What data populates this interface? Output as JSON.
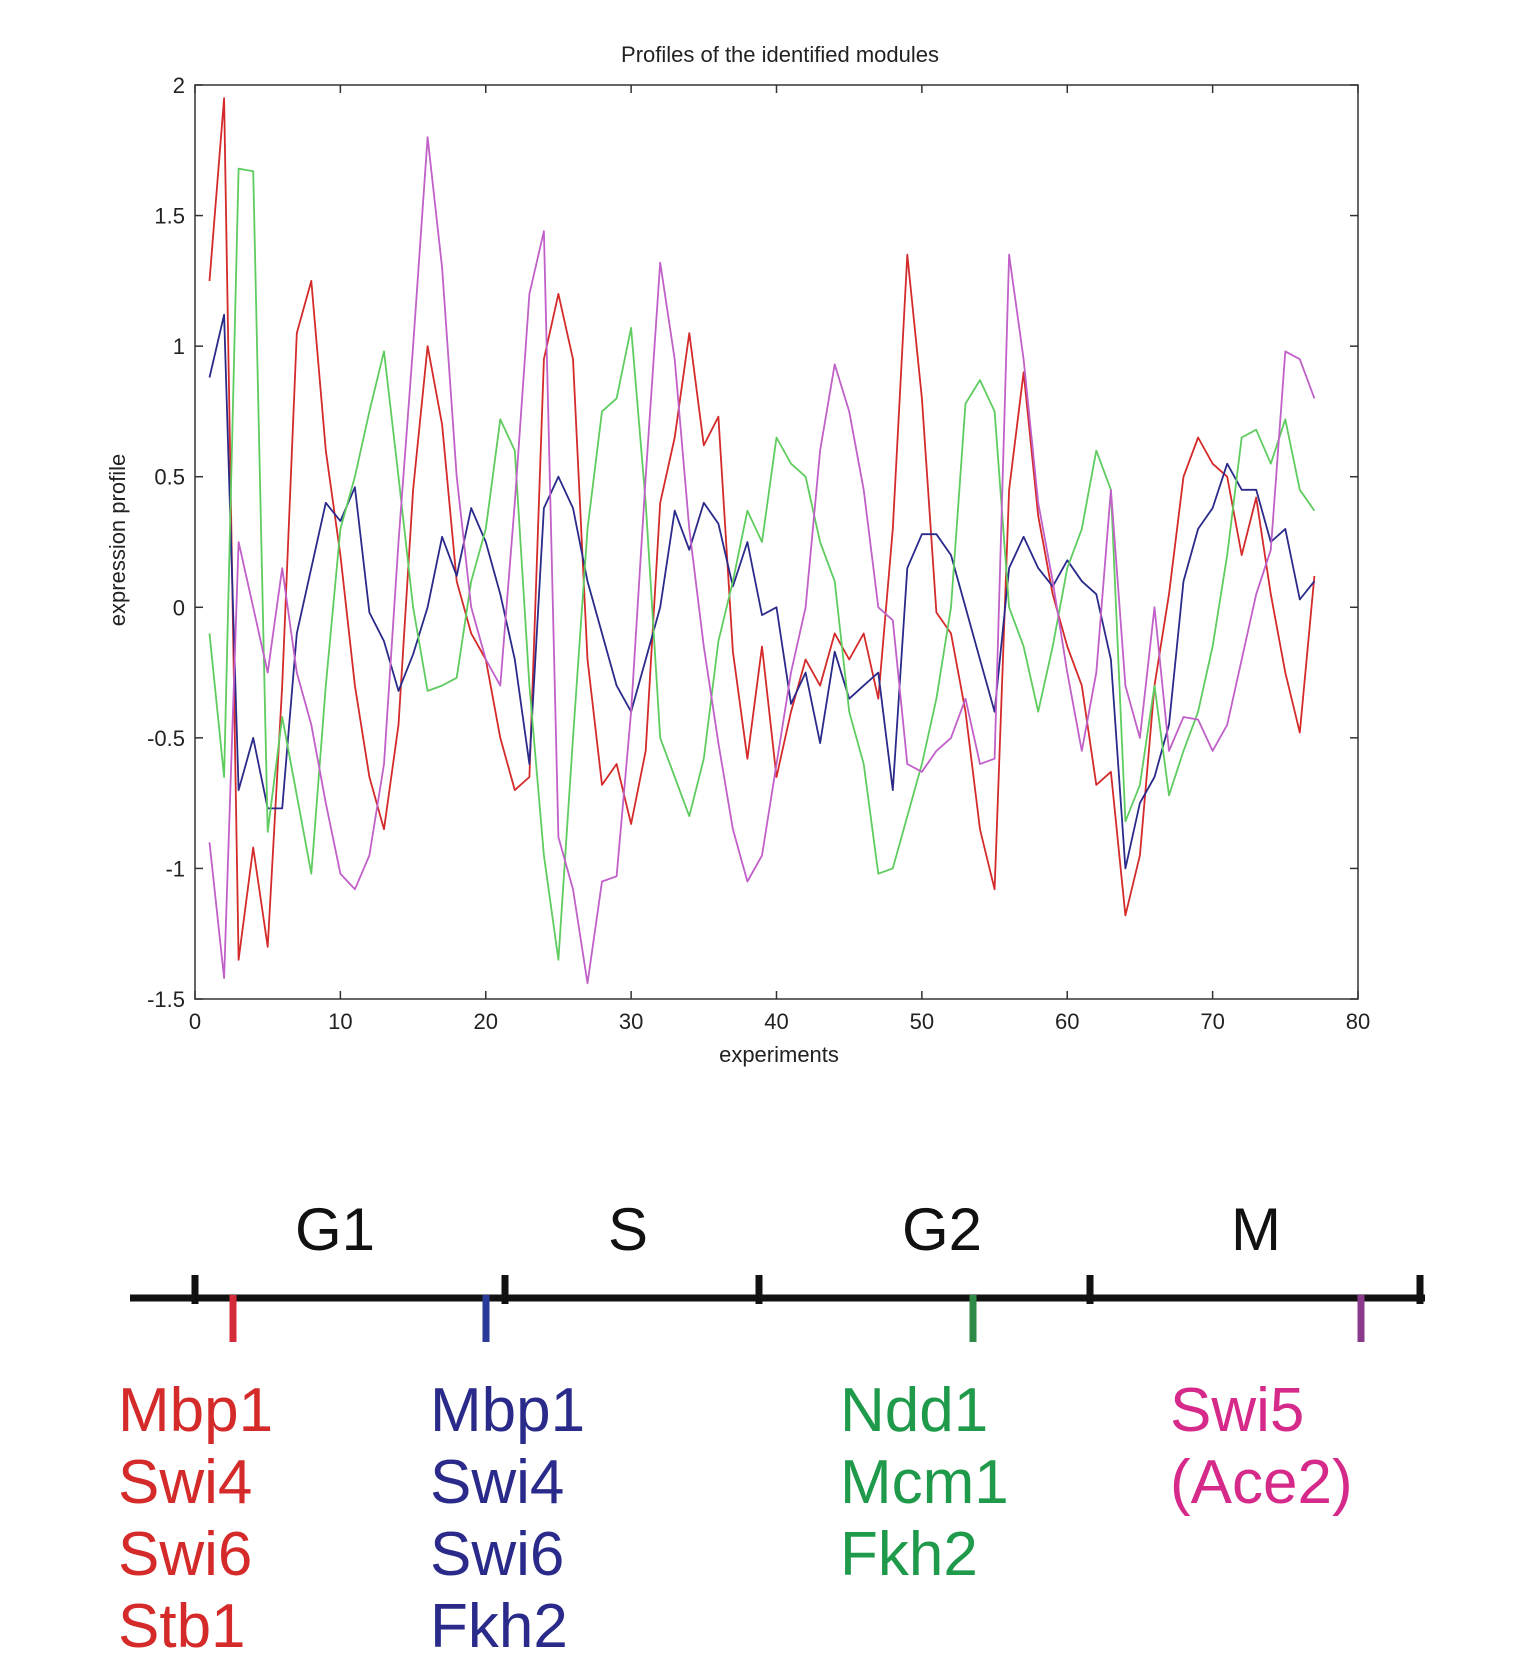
{
  "chart_data": {
    "type": "line",
    "title": "Profiles of the identified modules",
    "xlabel": "experiments",
    "ylabel": "expression profile",
    "xlim": [
      0,
      80
    ],
    "ylim": [
      -1.5,
      2
    ],
    "xticks": [
      0,
      10,
      20,
      30,
      40,
      50,
      60,
      70,
      80
    ],
    "yticks": [
      -1.5,
      -1,
      -0.5,
      0,
      0.5,
      1,
      1.5,
      2
    ],
    "x": [
      1,
      2,
      3,
      4,
      5,
      6,
      7,
      8,
      9,
      10,
      11,
      12,
      13,
      14,
      15,
      16,
      17,
      18,
      19,
      20,
      21,
      22,
      23,
      24,
      25,
      26,
      27,
      28,
      29,
      30,
      31,
      32,
      33,
      34,
      35,
      36,
      37,
      38,
      39,
      40,
      41,
      42,
      43,
      44,
      45,
      46,
      47,
      48,
      49,
      50,
      51,
      52,
      53,
      54,
      55,
      56,
      57,
      58,
      59,
      60,
      61,
      62,
      63,
      64,
      65,
      66,
      67,
      68,
      69,
      70,
      71,
      72,
      73,
      74,
      75,
      76,
      77
    ],
    "grid": false,
    "series": [
      {
        "color": "#d42a2a",
        "values": [
          1.25,
          1.95,
          -1.35,
          -0.92,
          -1.3,
          -0.3,
          1.05,
          1.25,
          0.6,
          0.2,
          -0.3,
          -0.65,
          -0.85,
          -0.45,
          0.45,
          1.0,
          0.7,
          0.1,
          -0.1,
          -0.2,
          -0.5,
          -0.7,
          -0.65,
          0.95,
          1.2,
          0.95,
          -0.2,
          -0.68,
          -0.6,
          -0.83,
          -0.55,
          0.4,
          0.65,
          1.05,
          0.62,
          0.73,
          -0.17,
          -0.58,
          -0.15,
          -0.65,
          -0.4,
          -0.2,
          -0.3,
          -0.1,
          -0.2,
          -0.1,
          -0.35,
          0.3,
          1.35,
          0.8,
          -0.02,
          -0.1,
          -0.4,
          -0.85,
          -1.08,
          0.45,
          0.9,
          0.35,
          0.05,
          -0.15,
          -0.3,
          -0.68,
          -0.63,
          -1.18,
          -0.95,
          -0.3,
          0.05,
          0.5,
          0.65,
          0.55,
          0.5,
          0.2,
          0.42,
          0.05,
          -0.25,
          -0.48,
          0.12
        ]
      },
      {
        "color": "#2a2a8a",
        "values": [
          0.88,
          1.12,
          -0.7,
          -0.5,
          -0.77,
          -0.77,
          -0.1,
          0.15,
          0.4,
          0.33,
          0.46,
          -0.02,
          -0.13,
          -0.32,
          -0.18,
          0.0,
          0.27,
          0.12,
          0.38,
          0.25,
          0.05,
          -0.2,
          -0.6,
          0.38,
          0.5,
          0.38,
          0.1,
          -0.1,
          -0.3,
          -0.4,
          -0.2,
          0.0,
          0.37,
          0.22,
          0.4,
          0.32,
          0.08,
          0.25,
          -0.03,
          0.0,
          -0.37,
          -0.25,
          -0.52,
          -0.17,
          -0.35,
          -0.3,
          -0.25,
          -0.7,
          0.15,
          0.28,
          0.28,
          0.2,
          0.0,
          -0.2,
          -0.4,
          0.15,
          0.27,
          0.15,
          0.08,
          0.18,
          0.1,
          0.05,
          -0.2,
          -1.0,
          -0.75,
          -0.65,
          -0.45,
          0.1,
          0.3,
          0.38,
          0.55,
          0.45,
          0.45,
          0.25,
          0.3,
          0.03,
          0.1
        ]
      },
      {
        "color": "#5fcc5f",
        "values": [
          -0.1,
          -0.65,
          1.68,
          1.67,
          -0.86,
          -0.42,
          -0.72,
          -1.02,
          -0.3,
          0.3,
          0.5,
          0.75,
          0.98,
          0.5,
          0.0,
          -0.32,
          -0.3,
          -0.27,
          0.1,
          0.3,
          0.72,
          0.6,
          -0.3,
          -0.95,
          -1.35,
          -0.5,
          0.3,
          0.75,
          0.8,
          1.07,
          0.4,
          -0.5,
          -0.65,
          -0.8,
          -0.58,
          -0.13,
          0.1,
          0.37,
          0.25,
          0.65,
          0.55,
          0.5,
          0.25,
          0.1,
          -0.4,
          -0.6,
          -1.02,
          -1.0,
          -0.8,
          -0.6,
          -0.35,
          0.0,
          0.78,
          0.87,
          0.75,
          0.0,
          -0.15,
          -0.4,
          -0.15,
          0.15,
          0.3,
          0.6,
          0.45,
          -0.82,
          -0.68,
          -0.3,
          -0.72,
          -0.55,
          -0.4,
          -0.15,
          0.2,
          0.65,
          0.68,
          0.55,
          0.72,
          0.45,
          0.37
        ]
      },
      {
        "color": "#c060c8",
        "values": [
          -0.9,
          -1.42,
          0.25,
          0.0,
          -0.25,
          0.15,
          -0.25,
          -0.45,
          -0.75,
          -1.02,
          -1.08,
          -0.95,
          -0.6,
          0.25,
          1.0,
          1.8,
          1.3,
          0.5,
          0.0,
          -0.2,
          -0.3,
          0.4,
          1.2,
          1.44,
          -0.88,
          -1.08,
          -1.44,
          -1.05,
          -1.03,
          -0.4,
          0.5,
          1.32,
          0.95,
          0.3,
          -0.15,
          -0.52,
          -0.85,
          -1.05,
          -0.95,
          -0.6,
          -0.25,
          0.0,
          0.6,
          0.93,
          0.75,
          0.45,
          0.0,
          -0.05,
          -0.6,
          -0.63,
          -0.55,
          -0.5,
          -0.35,
          -0.6,
          -0.58,
          1.35,
          0.95,
          0.4,
          0.1,
          -0.25,
          -0.55,
          -0.25,
          0.45,
          -0.3,
          -0.5,
          0.0,
          -0.55,
          -0.42,
          -0.43,
          -0.55,
          -0.45,
          -0.2,
          0.05,
          0.22,
          0.98,
          0.95,
          0.8
        ]
      }
    ]
  },
  "cycle": {
    "phases": [
      "G1",
      "S",
      "G2",
      "M"
    ],
    "regulators": [
      {
        "color": "#d42a2a",
        "names": [
          "Mbp1",
          "Swi4",
          "Swi6",
          "Stb1"
        ]
      },
      {
        "color": "#2a2a8a",
        "names": [
          "Mbp1",
          "Swi4",
          "Swi6",
          "Fkh2"
        ]
      },
      {
        "color": "#1e9a4a",
        "names": [
          "Ndd1",
          "Mcm1",
          "Fkh2"
        ]
      },
      {
        "color": "#d62a8a",
        "names": [
          "Swi5",
          "(Ace2)"
        ]
      }
    ],
    "marker_colors": [
      "#d42a3a",
      "#2a3a9a",
      "#2e8a45",
      "#8a3a8a"
    ]
  }
}
